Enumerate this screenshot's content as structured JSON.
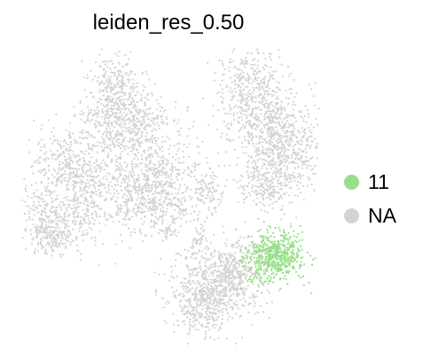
{
  "chart_data": {
    "type": "scatter",
    "title": "leiden_res_0.50",
    "xlabel": "",
    "ylabel": "",
    "grid": false,
    "legend_position": "right",
    "series": [
      {
        "name": "NA",
        "color": "#d3d3d3"
      },
      {
        "name": "11",
        "color": "#98df8a"
      }
    ]
  }
}
